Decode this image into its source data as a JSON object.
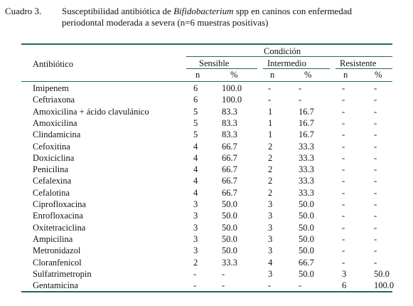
{
  "caption": {
    "label": "Cuadro 3.",
    "line1_pre": "Susceptibilidad antibiótica de ",
    "line1_italic": "Bifidobacterium",
    "line1_post": " spp en caninos con enfermedad",
    "line2": "periodontal moderada a severa (n=6 muestras positivas)"
  },
  "header": {
    "group": "Condición",
    "antibiotic": "Antibiótico",
    "sensible": "Sensible",
    "intermedio": "Intermedio",
    "resistente": "Resistente",
    "n": "n",
    "pct": "%"
  },
  "rows": [
    {
      "name": "Imipenem",
      "sn": "6",
      "sp": "100.0",
      "in": "-",
      "ip": "-",
      "rn": "-",
      "rp": "-"
    },
    {
      "name": "Ceftriaxona",
      "sn": "6",
      "sp": "100.0",
      "in": "-",
      "ip": "-",
      "rn": "-",
      "rp": "-"
    },
    {
      "name": "Amoxicilina + ácido clavulánico",
      "sn": "5",
      "sp": "83.3",
      "in": "1",
      "ip": "16.7",
      "rn": "-",
      "rp": "-"
    },
    {
      "name": "Amoxicilina",
      "sn": "5",
      "sp": "83.3",
      "in": "1",
      "ip": "16.7",
      "rn": "-",
      "rp": "-"
    },
    {
      "name": "Clindamicina",
      "sn": "5",
      "sp": "83.3",
      "in": "1",
      "ip": "16.7",
      "rn": "-",
      "rp": "-"
    },
    {
      "name": "Cefoxitina",
      "sn": "4",
      "sp": "66.7",
      "in": "2",
      "ip": "33.3",
      "rn": "-",
      "rp": "-"
    },
    {
      "name": "Doxiciclina",
      "sn": "4",
      "sp": "66.7",
      "in": "2",
      "ip": "33.3",
      "rn": "-",
      "rp": "-"
    },
    {
      "name": "Penicilina",
      "sn": "4",
      "sp": "66.7",
      "in": "2",
      "ip": "33.3",
      "rn": "-",
      "rp": "-"
    },
    {
      "name": "Cefalexina",
      "sn": "4",
      "sp": "66.7",
      "in": "2",
      "ip": "33.3",
      "rn": "-",
      "rp": "-"
    },
    {
      "name": "Cefalotina",
      "sn": "4",
      "sp": "66.7",
      "in": "2",
      "ip": "33.3",
      "rn": "-",
      "rp": "-"
    },
    {
      "name": "Ciprofloxacina",
      "sn": "3",
      "sp": "50.0",
      "in": "3",
      "ip": "50.0",
      "rn": "-",
      "rp": "-"
    },
    {
      "name": "Enrofloxacina",
      "sn": "3",
      "sp": "50.0",
      "in": "3",
      "ip": "50.0",
      "rn": "-",
      "rp": "-"
    },
    {
      "name": "Oxitetraciclina",
      "sn": "3",
      "sp": "50.0",
      "in": "3",
      "ip": "50.0",
      "rn": "-",
      "rp": "-"
    },
    {
      "name": "Ampicilina",
      "sn": "3",
      "sp": "50.0",
      "in": "3",
      "ip": "50.0",
      "rn": "-",
      "rp": "-"
    },
    {
      "name": "Metronidazol",
      "sn": "3",
      "sp": "50.0",
      "in": "3",
      "ip": "50.0",
      "rn": "-",
      "rp": "-"
    },
    {
      "name": "Cloranfenicol",
      "sn": "2",
      "sp": "33.3",
      "in": "4",
      "ip": "66.7",
      "rn": "-",
      "rp": "-"
    },
    {
      "name": "Sulfatrimetropin",
      "sn": "-",
      "sp": "-",
      "in": "3",
      "ip": "50.0",
      "rn": "3",
      "rp": "50.0"
    },
    {
      "name": "Gentamicina",
      "sn": "-",
      "sp": "-",
      "in": "-",
      "ip": "-",
      "rn": "6",
      "rp": "100.0"
    }
  ]
}
